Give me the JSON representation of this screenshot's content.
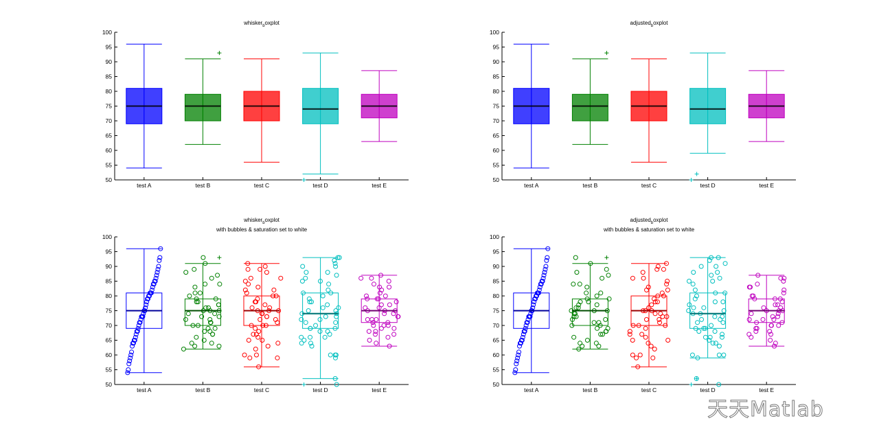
{
  "watermark": "天天Matlab",
  "colors": [
    "#0000ff",
    "#008000",
    "#ff0000",
    "#00bfbf",
    "#bf00bf"
  ],
  "chart_data": [
    {
      "type": "box",
      "title_main": "whisker",
      "title_sub": "b",
      "title_rest": "oxplot",
      "subtitle": "",
      "categories": [
        "test A",
        "test B",
        "test C",
        "test D",
        "test E"
      ],
      "ylim": [
        50,
        100
      ],
      "yticks": [
        50,
        55,
        60,
        65,
        70,
        75,
        80,
        85,
        90,
        95,
        100
      ],
      "filled": true,
      "show_points": false,
      "boxes": [
        {
          "q1": 69,
          "median": 75,
          "q3": 81,
          "whisker_low": 54,
          "whisker_high": 96,
          "outliers": []
        },
        {
          "q1": 70,
          "median": 75,
          "q3": 79,
          "whisker_low": 62,
          "whisker_high": 91,
          "outliers": [
            93
          ]
        },
        {
          "q1": 70,
          "median": 75,
          "q3": 80,
          "whisker_low": 56,
          "whisker_high": 91,
          "outliers": []
        },
        {
          "q1": 69,
          "median": 74,
          "q3": 81,
          "whisker_low": 52,
          "whisker_high": 93,
          "outliers": [
            50
          ]
        },
        {
          "q1": 71,
          "median": 75,
          "q3": 79,
          "whisker_low": 63,
          "whisker_high": 87,
          "outliers": []
        }
      ]
    },
    {
      "type": "box",
      "title_main": "adjusted",
      "title_sub": "b",
      "title_rest": "oxplot",
      "subtitle": "",
      "categories": [
        "test A",
        "test B",
        "test C",
        "test D",
        "test E"
      ],
      "ylim": [
        50,
        100
      ],
      "yticks": [
        50,
        55,
        60,
        65,
        70,
        75,
        80,
        85,
        90,
        95,
        100
      ],
      "filled": true,
      "show_points": false,
      "boxes": [
        {
          "q1": 69,
          "median": 75,
          "q3": 81,
          "whisker_low": 54,
          "whisker_high": 96,
          "outliers": []
        },
        {
          "q1": 70,
          "median": 75,
          "q3": 79,
          "whisker_low": 62,
          "whisker_high": 91,
          "outliers": [
            93
          ]
        },
        {
          "q1": 70,
          "median": 75,
          "q3": 80,
          "whisker_low": 56,
          "whisker_high": 91,
          "outliers": []
        },
        {
          "q1": 69,
          "median": 74,
          "q3": 81,
          "whisker_low": 59,
          "whisker_high": 93,
          "outliers": [
            50,
            52
          ]
        },
        {
          "q1": 71,
          "median": 75,
          "q3": 79,
          "whisker_low": 63,
          "whisker_high": 87,
          "outliers": []
        }
      ]
    },
    {
      "type": "box",
      "title_main": "whisker",
      "title_sub": "b",
      "title_rest": "oxplot",
      "subtitle": "with bubbles & saturation set to white",
      "categories": [
        "test A",
        "test B",
        "test C",
        "test D",
        "test E"
      ],
      "ylim": [
        50,
        100
      ],
      "yticks": [
        50,
        55,
        60,
        65,
        70,
        75,
        80,
        85,
        90,
        95,
        100
      ],
      "filled": false,
      "show_points": true,
      "boxes": [
        {
          "q1": 69,
          "median": 75,
          "q3": 81,
          "whisker_low": 54,
          "whisker_high": 96,
          "outliers": []
        },
        {
          "q1": 70,
          "median": 75,
          "q3": 79,
          "whisker_low": 62,
          "whisker_high": 91,
          "outliers": [
            93
          ]
        },
        {
          "q1": 70,
          "median": 75,
          "q3": 80,
          "whisker_low": 56,
          "whisker_high": 91,
          "outliers": []
        },
        {
          "q1": 69,
          "median": 74,
          "q3": 81,
          "whisker_low": 52,
          "whisker_high": 93,
          "outliers": [
            50
          ]
        },
        {
          "q1": 71,
          "median": 75,
          "q3": 79,
          "whisker_low": 63,
          "whisker_high": 87,
          "outliers": []
        }
      ]
    },
    {
      "type": "box",
      "title_main": "adjusted",
      "title_sub": "b",
      "title_rest": "oxplot",
      "subtitle": "with bubbles & saturation set to white",
      "categories": [
        "test A",
        "test B",
        "test C",
        "test D",
        "test E"
      ],
      "ylim": [
        50,
        100
      ],
      "yticks": [
        50,
        55,
        60,
        65,
        70,
        75,
        80,
        85,
        90,
        95,
        100
      ],
      "filled": false,
      "show_points": true,
      "boxes": [
        {
          "q1": 69,
          "median": 75,
          "q3": 81,
          "whisker_low": 54,
          "whisker_high": 96,
          "outliers": []
        },
        {
          "q1": 70,
          "median": 75,
          "q3": 79,
          "whisker_low": 62,
          "whisker_high": 91,
          "outliers": [
            93
          ]
        },
        {
          "q1": 70,
          "median": 75,
          "q3": 80,
          "whisker_low": 56,
          "whisker_high": 91,
          "outliers": []
        },
        {
          "q1": 69,
          "median": 74,
          "q3": 81,
          "whisker_low": 59,
          "whisker_high": 93,
          "outliers": [
            50,
            52
          ]
        },
        {
          "q1": 71,
          "median": 75,
          "q3": 79,
          "whisker_low": 63,
          "whisker_high": 87,
          "outliers": []
        }
      ]
    }
  ],
  "points": [
    [
      54,
      55,
      57,
      58,
      59,
      60,
      61,
      63,
      64,
      64,
      65,
      65,
      66,
      67,
      68,
      68,
      69,
      70,
      71,
      71,
      72,
      73,
      73,
      73,
      74,
      75,
      75,
      76,
      77,
      78,
      79,
      79,
      80,
      80,
      81,
      81,
      81,
      82,
      83,
      84,
      84,
      85,
      85,
      86,
      87,
      88,
      89,
      90,
      92,
      93,
      96
    ],
    [
      62,
      63,
      63,
      64,
      64,
      65,
      66,
      67,
      67,
      68,
      68,
      69,
      69,
      70,
      70,
      71,
      71,
      72,
      72,
      73,
      73,
      74,
      74,
      75,
      75,
      75,
      76,
      76,
      77,
      77,
      78,
      78,
      79,
      79,
      80,
      81,
      81,
      83,
      84,
      84,
      86,
      87,
      88,
      89,
      91,
      93
    ],
    [
      56,
      59,
      59,
      60,
      60,
      62,
      63,
      64,
      65,
      65,
      66,
      67,
      67,
      68,
      69,
      70,
      70,
      70,
      71,
      72,
      72,
      73,
      73,
      74,
      74,
      75,
      75,
      75,
      76,
      76,
      77,
      78,
      78,
      79,
      80,
      80,
      81,
      82,
      82,
      83,
      84,
      85,
      86,
      86,
      88,
      89,
      89,
      90,
      91
    ],
    [
      50,
      52,
      59,
      60,
      60,
      60,
      63,
      64,
      64,
      65,
      66,
      66,
      66,
      67,
      68,
      68,
      69,
      69,
      69,
      70,
      71,
      71,
      72,
      72,
      73,
      73,
      74,
      74,
      75,
      75,
      76,
      76,
      77,
      78,
      78,
      79,
      80,
      81,
      81,
      82,
      84,
      85,
      85,
      86,
      87,
      88,
      88,
      90,
      90,
      91,
      92,
      93,
      93
    ],
    [
      63,
      64,
      65,
      66,
      67,
      67,
      68,
      68,
      69,
      69,
      70,
      70,
      70,
      71,
      71,
      72,
      72,
      72,
      73,
      73,
      74,
      74,
      75,
      75,
      75,
      76,
      76,
      77,
      77,
      78,
      79,
      79,
      79,
      80,
      80,
      81,
      82,
      83,
      83,
      84,
      85,
      86,
      86,
      87
    ]
  ]
}
